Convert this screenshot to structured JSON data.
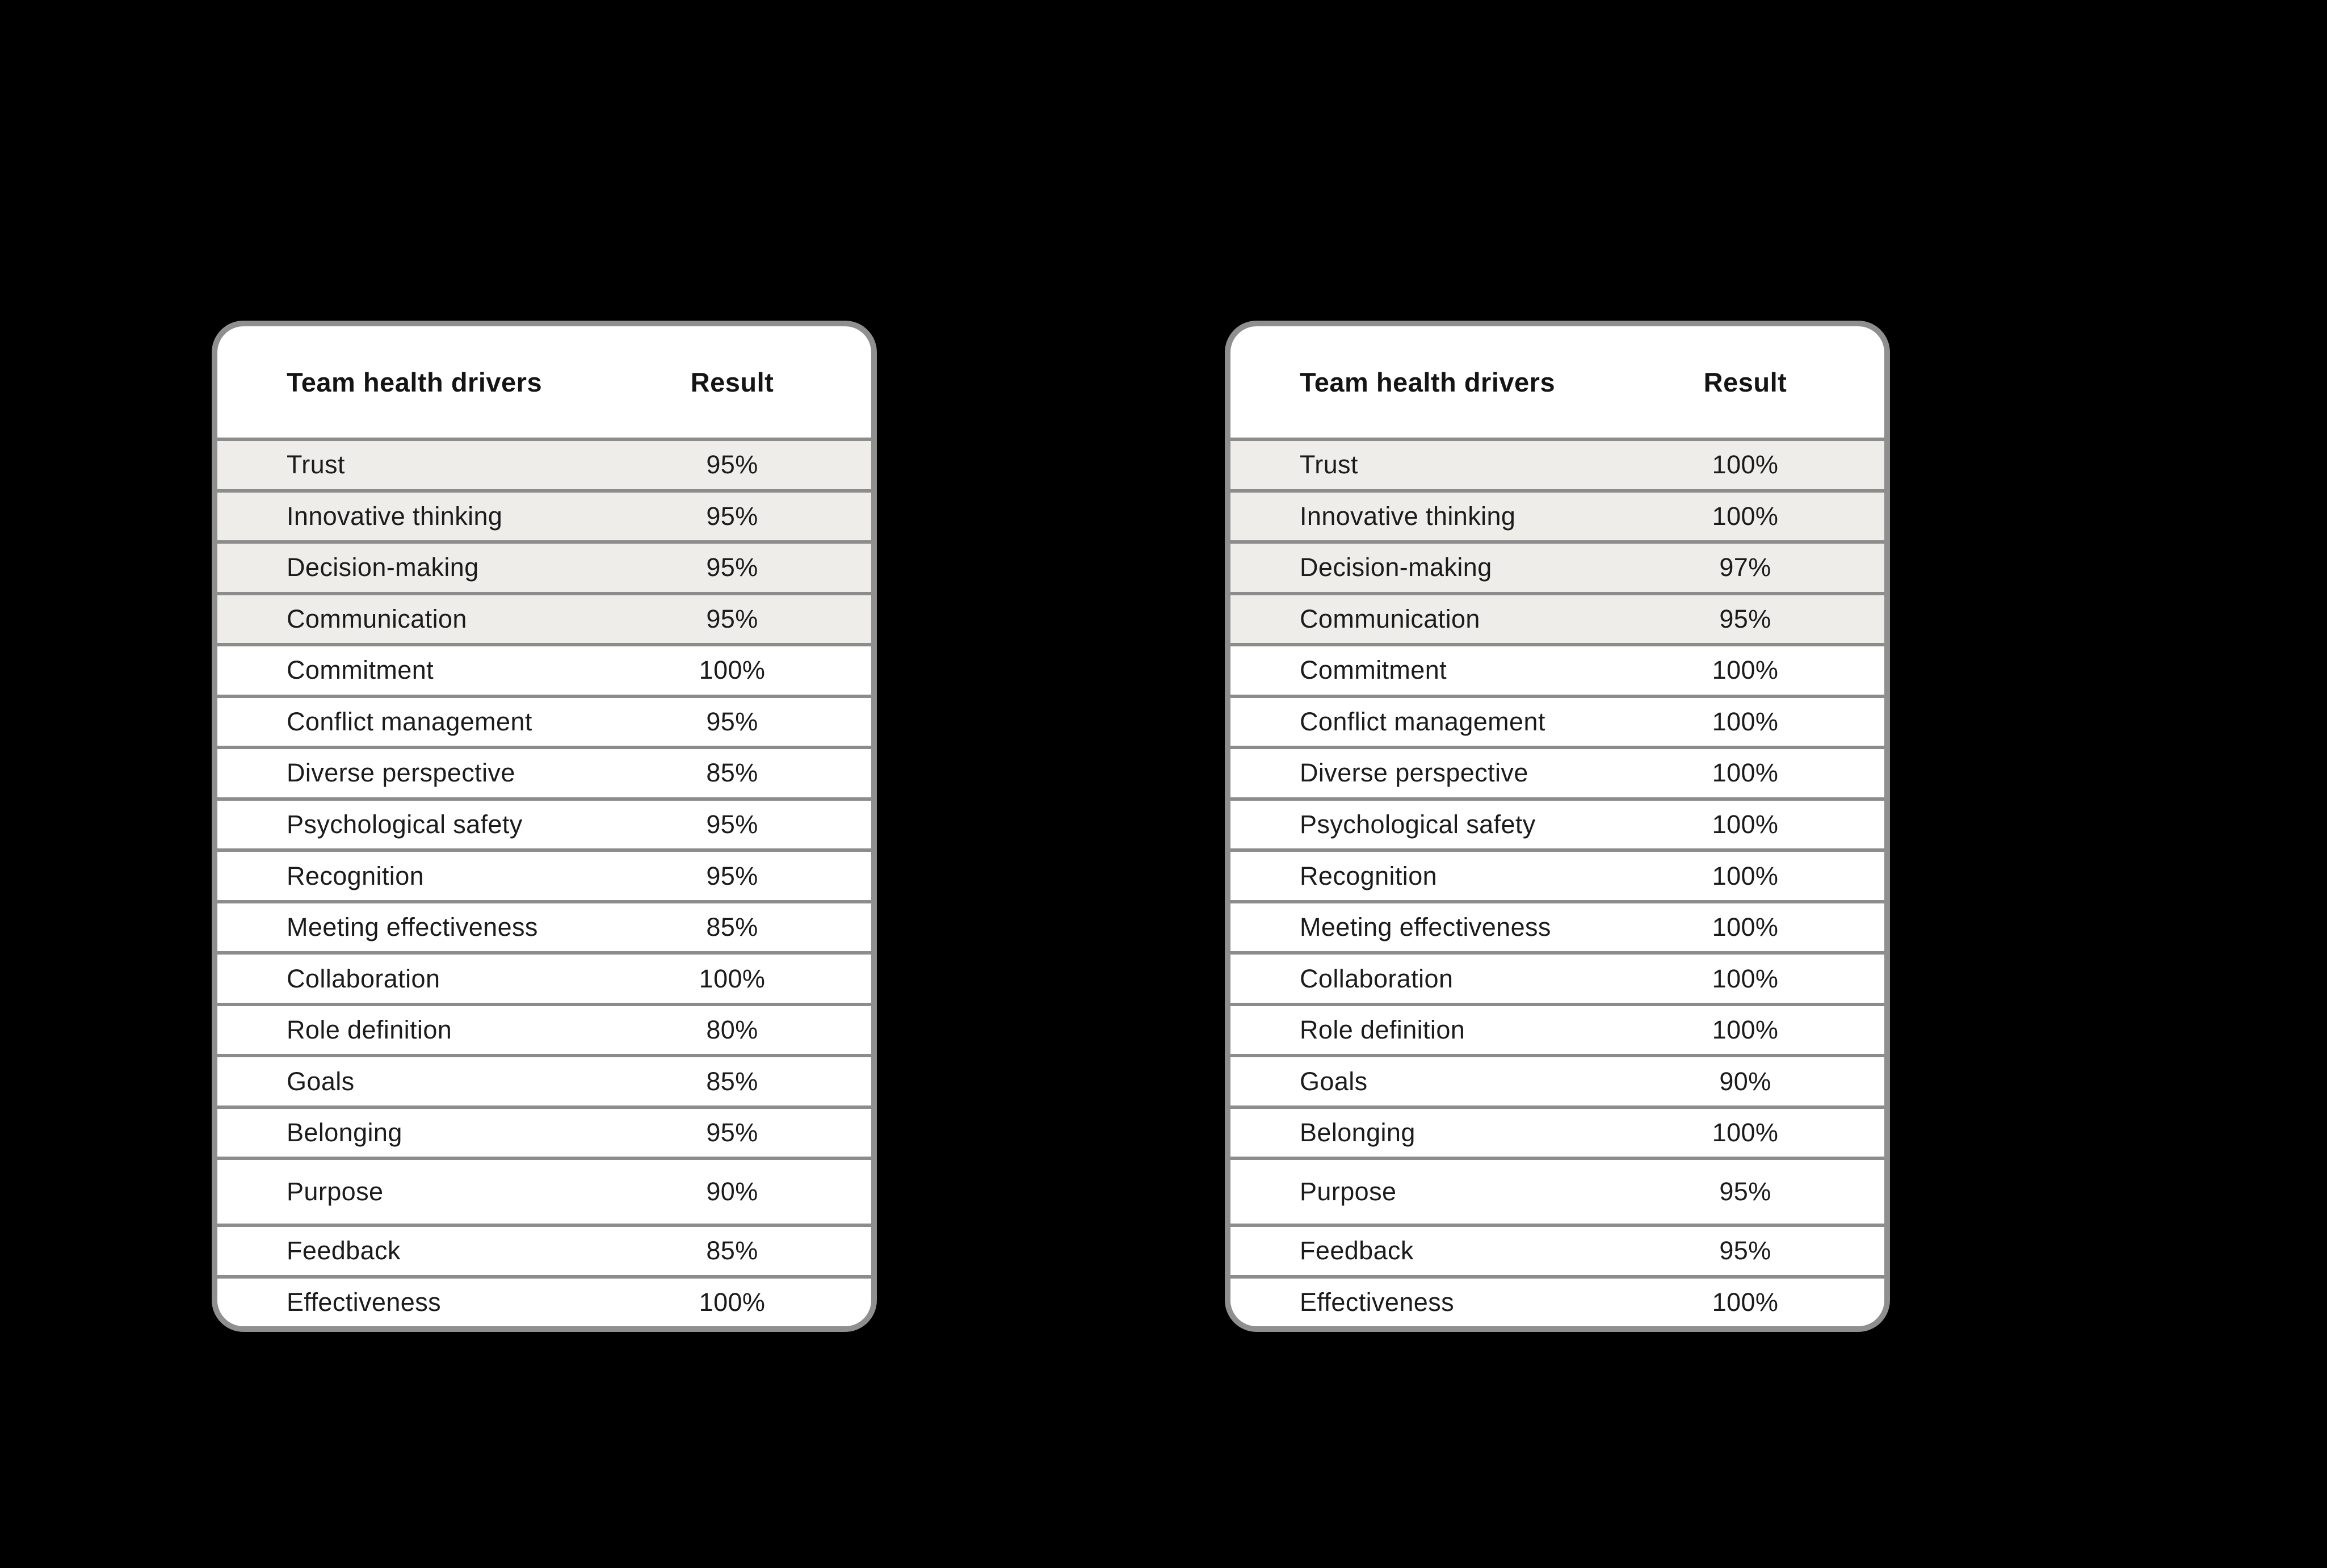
{
  "background_color": "#000000",
  "colors": {
    "card_background": "#FFFFFF",
    "card_border": "#8F8F8F",
    "row_divider": "#8C8C8C",
    "shaded_row_background": "#EFEDE9",
    "text": "#1B1B1B"
  },
  "chart_data": [
    {
      "type": "table",
      "columns": [
        "Team health drivers",
        "Result"
      ],
      "highlighted_row_count": 4,
      "rows": [
        {
          "label": "Trust",
          "value": "95%",
          "shaded": true
        },
        {
          "label": "Innovative thinking",
          "value": "95%",
          "shaded": true
        },
        {
          "label": "Decision-making",
          "value": "95%",
          "shaded": true
        },
        {
          "label": "Communication",
          "value": "95%",
          "shaded": true
        },
        {
          "label": "Commitment",
          "value": "100%"
        },
        {
          "label": "Conflict management",
          "value": "95%"
        },
        {
          "label": "Diverse perspective",
          "value": "85%"
        },
        {
          "label": "Psychological safety",
          "value": "95%"
        },
        {
          "label": "Recognition",
          "value": "95%"
        },
        {
          "label": "Meeting effectiveness",
          "value": "85%"
        },
        {
          "label": "Collaboration",
          "value": "100%"
        },
        {
          "label": "Role definition",
          "value": "80%"
        },
        {
          "label": "Goals",
          "value": "85%"
        },
        {
          "label": "Belonging",
          "value": "95%"
        },
        {
          "label": "Purpose",
          "value": "90%",
          "tall": true
        },
        {
          "label": "Feedback",
          "value": "85%"
        },
        {
          "label": "Effectiveness",
          "value": "100%"
        }
      ]
    },
    {
      "type": "table",
      "columns": [
        "Team health drivers",
        "Result"
      ],
      "highlighted_row_count": 4,
      "rows": [
        {
          "label": "Trust",
          "value": "100%",
          "shaded": true
        },
        {
          "label": "Innovative thinking",
          "value": "100%",
          "shaded": true
        },
        {
          "label": "Decision-making",
          "value": "97%",
          "shaded": true
        },
        {
          "label": "Communication",
          "value": "95%",
          "shaded": true
        },
        {
          "label": "Commitment",
          "value": "100%"
        },
        {
          "label": "Conflict management",
          "value": "100%"
        },
        {
          "label": "Diverse perspective",
          "value": "100%"
        },
        {
          "label": "Psychological safety",
          "value": "100%"
        },
        {
          "label": "Recognition",
          "value": "100%"
        },
        {
          "label": "Meeting effectiveness",
          "value": "100%"
        },
        {
          "label": "Collaboration",
          "value": "100%"
        },
        {
          "label": "Role definition",
          "value": "100%"
        },
        {
          "label": "Goals",
          "value": "90%"
        },
        {
          "label": "Belonging",
          "value": "100%"
        },
        {
          "label": "Purpose",
          "value": "95%",
          "tall": true
        },
        {
          "label": "Feedback",
          "value": "95%"
        },
        {
          "label": "Effectiveness",
          "value": "100%"
        }
      ]
    }
  ]
}
